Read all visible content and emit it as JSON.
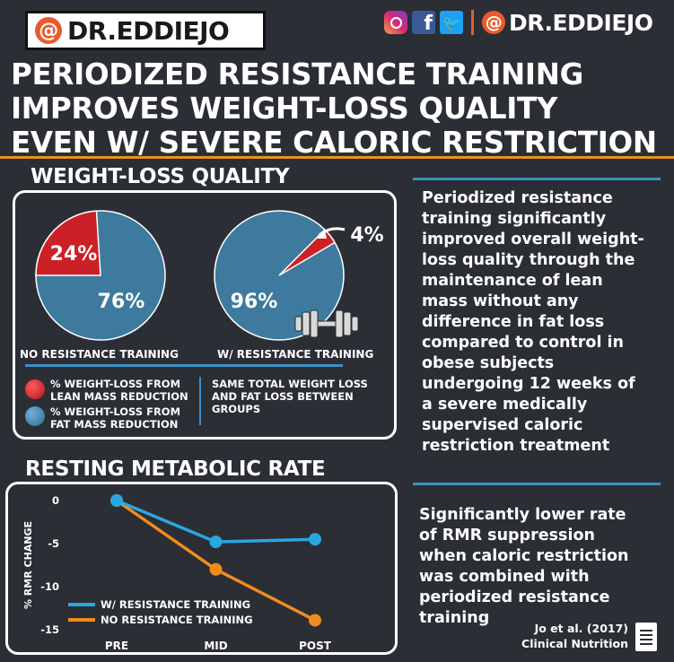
{
  "brand": {
    "at_symbol": "@",
    "logo_text": "DR.EDDIEJO",
    "handle_text": "DR.EDDIEJO",
    "facebook_glyph": "f",
    "twitter_glyph": "🐦"
  },
  "headline": {
    "line1": "PERIODIZED RESISTANCE TRAINING",
    "line2": "IMPROVES WEIGHT-LOSS QUALITY",
    "line3": "EVEN W/ SEVERE CALORIC RESTRICTION"
  },
  "weight_loss": {
    "title": "WEIGHT-LOSS QUALITY",
    "pie1_caption": "NO RESISTANCE TRAINING",
    "pie2_caption": "W/ RESISTANCE TRAINING",
    "legend_lean": "% WEIGHT-LOSS FROM LEAN MASS REDUCTION",
    "legend_lean_l1": "% WEIGHT-LOSS FROM",
    "legend_lean_l2": "LEAN MASS REDUCTION",
    "legend_fat_l1": "% WEIGHT-LOSS FROM",
    "legend_fat_l2": "FAT MASS REDUCTION",
    "note_l1": "SAME TOTAL WEIGHT LOSS",
    "note_l2": "AND FAT LOSS BETWEEN",
    "note_l3": "GROUPS"
  },
  "rmr": {
    "title": "RESTING METABOLIC RATE"
  },
  "side": {
    "summary_lines": [
      "Periodized resistance",
      "training significantly",
      "improved overall weight-",
      "loss quality through the",
      "maintenance of lean",
      "mass without any",
      "difference in fat loss",
      "compared to control in",
      "obese subjects",
      "undergoing 12 weeks of",
      "a severe medically",
      "supervised caloric",
      "restriction treatment"
    ],
    "rmr_lines": [
      "Significantly lower rate",
      "of RMR suppression",
      "when caloric restriction",
      "was combined with",
      "periodized resistance",
      "training"
    ]
  },
  "citation": {
    "line1": "Jo et al. (2017)",
    "line2": "Clinical Nutrition"
  },
  "colors": {
    "lean": "#cc2027",
    "fat": "#3e7a9e",
    "accent": "#e8931c",
    "rule": "#3d8fc5",
    "series_rt": "#2aa7e0",
    "series_nrt": "#f08c1e"
  },
  "chart_data": [
    {
      "type": "pie",
      "title": "NO RESISTANCE TRAINING",
      "labels": [
        "% WEIGHT-LOSS FROM LEAN MASS REDUCTION",
        "% WEIGHT-LOSS FROM FAT MASS REDUCTION"
      ],
      "values": [
        24,
        76
      ],
      "value_labels": [
        "24%",
        "76%"
      ]
    },
    {
      "type": "pie",
      "title": "W/ RESISTANCE TRAINING",
      "labels": [
        "% WEIGHT-LOSS FROM LEAN MASS REDUCTION",
        "% WEIGHT-LOSS FROM FAT MASS REDUCTION"
      ],
      "values": [
        4,
        96
      ],
      "value_labels": [
        "4%",
        "96%"
      ]
    },
    {
      "type": "line",
      "title": "RESTING METABOLIC RATE",
      "ylabel": "% RMR CHANGE",
      "xlabel": "",
      "categories": [
        "PRE",
        "MID",
        "POST"
      ],
      "ylim": [
        -15,
        0
      ],
      "yticks": [
        0,
        -5,
        -10,
        -15
      ],
      "ytick_labels": [
        "0",
        "-5",
        "-10",
        "-15"
      ],
      "series": [
        {
          "name": "W/ RESISTANCE TRAINING",
          "values": [
            0,
            -4.8,
            -4.5
          ]
        },
        {
          "name": "NO RESISTANCE TRAINING",
          "values": [
            0,
            -8.0,
            -13.9
          ]
        }
      ],
      "legend_position": "bottom-left"
    }
  ]
}
